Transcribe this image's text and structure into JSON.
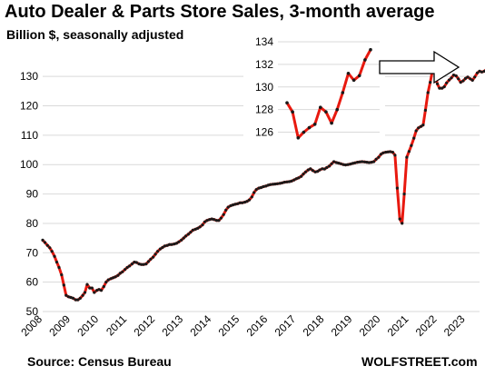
{
  "title": "Auto Dealer & Parts Store Sales, 3-month average",
  "subtitle": "Billion $, seasonally adjusted",
  "source": "Source: Census Bureau",
  "brand": "WOLFSTREET.com",
  "colors": {
    "line": "#e8190f",
    "marker": "#1a1a1a",
    "grid": "#d9d9d9",
    "arrow": "#000000"
  },
  "chart_data": [
    {
      "type": "line",
      "title": "Auto Dealer & Parts Store Sales, 3-month average",
      "ylabel": "Billion $, seasonally adjusted",
      "ylim": [
        50,
        135
      ],
      "yticks": [
        50,
        60,
        70,
        80,
        90,
        100,
        110,
        120,
        130
      ],
      "xlim": [
        2008.0,
        2023.5
      ],
      "xticks": [
        "2008",
        "2009",
        "2010",
        "2011",
        "2012",
        "2013",
        "2014",
        "2015",
        "2016",
        "2017",
        "2018",
        "2019",
        "2020",
        "2021",
        "2022",
        "2023"
      ],
      "grid": "horizontal",
      "series": [
        {
          "points": [
            [
              2008.0,
              74.3
            ],
            [
              2008.08,
              73.5
            ],
            [
              2008.17,
              72.5
            ],
            [
              2008.25,
              71.7
            ],
            [
              2008.33,
              70.5
            ],
            [
              2008.42,
              68.8
            ],
            [
              2008.5,
              66.8
            ],
            [
              2008.58,
              65.0
            ],
            [
              2008.67,
              62.5
            ],
            [
              2008.75,
              59.0
            ],
            [
              2008.83,
              55.5
            ],
            [
              2008.92,
              55.0
            ],
            [
              2009.0,
              54.8
            ],
            [
              2009.08,
              54.5
            ],
            [
              2009.17,
              54.0
            ],
            [
              2009.25,
              54.0
            ],
            [
              2009.33,
              54.5
            ],
            [
              2009.42,
              55.5
            ],
            [
              2009.5,
              56.5
            ],
            [
              2009.58,
              59.2
            ],
            [
              2009.67,
              58.0
            ],
            [
              2009.75,
              58.0
            ],
            [
              2009.83,
              56.5
            ],
            [
              2009.92,
              57.2
            ],
            [
              2010.0,
              57.5
            ],
            [
              2010.08,
              57.2
            ],
            [
              2010.17,
              58.5
            ],
            [
              2010.25,
              60.0
            ],
            [
              2010.33,
              60.8
            ],
            [
              2010.42,
              61.2
            ],
            [
              2010.5,
              61.5
            ],
            [
              2010.58,
              61.8
            ],
            [
              2010.67,
              62.3
            ],
            [
              2010.75,
              63.0
            ],
            [
              2010.83,
              63.5
            ],
            [
              2010.92,
              64.3
            ],
            [
              2011.0,
              65.0
            ],
            [
              2011.08,
              65.5
            ],
            [
              2011.17,
              66.2
            ],
            [
              2011.25,
              66.8
            ],
            [
              2011.33,
              66.7
            ],
            [
              2011.42,
              66.2
            ],
            [
              2011.5,
              66.0
            ],
            [
              2011.58,
              66.0
            ],
            [
              2011.67,
              66.2
            ],
            [
              2011.75,
              67.0
            ],
            [
              2011.83,
              67.8
            ],
            [
              2011.92,
              68.5
            ],
            [
              2012.0,
              69.5
            ],
            [
              2012.08,
              70.5
            ],
            [
              2012.17,
              71.3
            ],
            [
              2012.25,
              71.8
            ],
            [
              2012.33,
              72.3
            ],
            [
              2012.42,
              72.5
            ],
            [
              2012.5,
              72.8
            ],
            [
              2012.58,
              72.8
            ],
            [
              2012.67,
              73.0
            ],
            [
              2012.75,
              73.2
            ],
            [
              2012.83,
              73.7
            ],
            [
              2012.92,
              74.3
            ],
            [
              2013.0,
              75.0
            ],
            [
              2013.08,
              75.7
            ],
            [
              2013.17,
              76.3
            ],
            [
              2013.25,
              77.0
            ],
            [
              2013.33,
              77.7
            ],
            [
              2013.42,
              78.0
            ],
            [
              2013.5,
              78.3
            ],
            [
              2013.58,
              78.8
            ],
            [
              2013.67,
              79.5
            ],
            [
              2013.75,
              80.5
            ],
            [
              2013.83,
              81.0
            ],
            [
              2013.92,
              81.3
            ],
            [
              2014.0,
              81.5
            ],
            [
              2014.08,
              81.3
            ],
            [
              2014.17,
              81.0
            ],
            [
              2014.25,
              81.0
            ],
            [
              2014.33,
              81.8
            ],
            [
              2014.42,
              83.0
            ],
            [
              2014.5,
              84.5
            ],
            [
              2014.58,
              85.5
            ],
            [
              2014.67,
              86.0
            ],
            [
              2014.75,
              86.3
            ],
            [
              2014.83,
              86.5
            ],
            [
              2014.92,
              86.7
            ],
            [
              2015.0,
              87.0
            ],
            [
              2015.08,
              87.0
            ],
            [
              2015.17,
              87.2
            ],
            [
              2015.25,
              87.5
            ],
            [
              2015.33,
              88.0
            ],
            [
              2015.42,
              89.0
            ],
            [
              2015.5,
              90.5
            ],
            [
              2015.58,
              91.5
            ],
            [
              2015.67,
              92.0
            ],
            [
              2015.75,
              92.2
            ],
            [
              2015.83,
              92.5
            ],
            [
              2015.92,
              92.7
            ],
            [
              2016.0,
              93.0
            ],
            [
              2016.08,
              93.2
            ],
            [
              2016.17,
              93.3
            ],
            [
              2016.25,
              93.4
            ],
            [
              2016.33,
              93.5
            ],
            [
              2016.42,
              93.6
            ],
            [
              2016.5,
              93.8
            ],
            [
              2016.58,
              94.0
            ],
            [
              2016.67,
              94.1
            ],
            [
              2016.75,
              94.2
            ],
            [
              2016.83,
              94.4
            ],
            [
              2016.92,
              94.8
            ],
            [
              2017.0,
              95.2
            ],
            [
              2017.08,
              95.5
            ],
            [
              2017.17,
              96.0
            ],
            [
              2017.25,
              96.8
            ],
            [
              2017.33,
              97.5
            ],
            [
              2017.42,
              98.2
            ],
            [
              2017.5,
              98.6
            ],
            [
              2017.58,
              98.0
            ],
            [
              2017.67,
              97.5
            ],
            [
              2017.75,
              97.7
            ],
            [
              2017.83,
              98.2
            ],
            [
              2017.92,
              98.6
            ],
            [
              2018.0,
              98.5
            ],
            [
              2018.08,
              99.0
            ],
            [
              2018.17,
              99.5
            ],
            [
              2018.25,
              100.3
            ],
            [
              2018.33,
              101.0
            ],
            [
              2018.42,
              100.7
            ],
            [
              2018.5,
              100.5
            ],
            [
              2018.58,
              100.3
            ],
            [
              2018.67,
              100.0
            ],
            [
              2018.75,
              99.9
            ],
            [
              2018.83,
              100.0
            ],
            [
              2018.92,
              100.2
            ],
            [
              2019.0,
              100.4
            ],
            [
              2019.08,
              100.6
            ],
            [
              2019.17,
              100.8
            ],
            [
              2019.25,
              100.9
            ],
            [
              2019.33,
              101.0
            ],
            [
              2019.42,
              100.9
            ],
            [
              2019.5,
              100.8
            ],
            [
              2019.58,
              100.7
            ],
            [
              2019.67,
              100.8
            ],
            [
              2019.75,
              101.0
            ],
            [
              2019.83,
              101.8
            ],
            [
              2019.92,
              102.5
            ],
            [
              2020.0,
              103.5
            ],
            [
              2020.08,
              104.0
            ],
            [
              2020.17,
              104.2
            ],
            [
              2020.25,
              104.3
            ],
            [
              2020.33,
              104.4
            ],
            [
              2020.42,
              104.2
            ],
            [
              2020.5,
              103.2
            ],
            [
              2020.58,
              92.0
            ],
            [
              2020.67,
              81.5
            ],
            [
              2020.75,
              80.0
            ],
            [
              2020.83,
              90.0
            ],
            [
              2020.92,
              102.5
            ],
            [
              2021.0,
              104.5
            ],
            [
              2021.08,
              106.5
            ],
            [
              2021.17,
              109.0
            ],
            [
              2021.25,
              111.5
            ],
            [
              2021.33,
              112.5
            ],
            [
              2021.42,
              113.0
            ],
            [
              2021.5,
              113.5
            ],
            [
              2021.58,
              118.5
            ],
            [
              2021.67,
              124.5
            ],
            [
              2021.75,
              128.0
            ],
            [
              2021.83,
              132.0
            ],
            [
              2021.92,
              131.0
            ],
            [
              2022.0,
              127.5
            ],
            [
              2022.08,
              126.0
            ],
            [
              2022.17,
              126.0
            ],
            [
              2022.25,
              126.5
            ],
            [
              2022.33,
              127.8
            ],
            [
              2022.42,
              128.8
            ],
            [
              2022.5,
              129.5
            ],
            [
              2022.58,
              130.5
            ],
            [
              2022.67,
              130.2
            ],
            [
              2022.75,
              129.2
            ],
            [
              2022.83,
              128.0
            ],
            [
              2022.92,
              128.5
            ],
            [
              2023.0,
              129.3
            ],
            [
              2023.08,
              129.8
            ],
            [
              2023.17,
              129.2
            ],
            [
              2023.25,
              128.7
            ],
            [
              2023.33,
              129.8
            ],
            [
              2023.42,
              131.2
            ],
            [
              2023.5,
              131.8
            ],
            [
              2023.58,
              131.5
            ],
            [
              2023.67,
              131.8
            ],
            [
              2023.75,
              132.5
            ],
            [
              2023.83,
              132.8
            ]
          ]
        }
      ]
    },
    {
      "type": "line",
      "ylim": [
        125,
        134
      ],
      "yticks": [
        126,
        128,
        130,
        132,
        134
      ],
      "grid": "horizontal",
      "series": [
        {
          "values": [
            128.6,
            127.8,
            125.5,
            126.0,
            126.4,
            126.7,
            128.2,
            127.8,
            126.8,
            128.0,
            129.5,
            131.2,
            130.6,
            131.0,
            132.4,
            133.3
          ]
        }
      ]
    }
  ]
}
